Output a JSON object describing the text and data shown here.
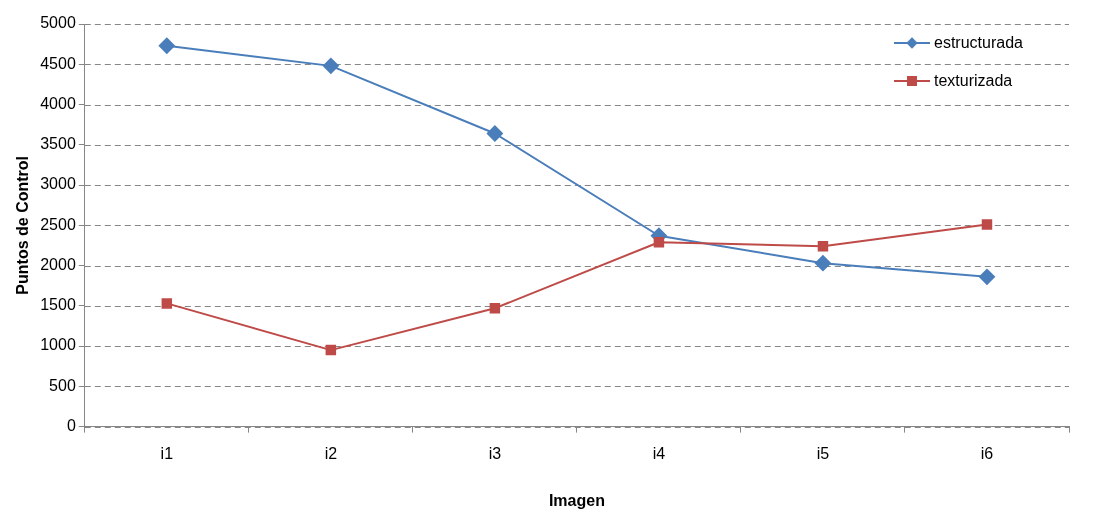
{
  "chart_data": {
    "type": "line",
    "xlabel": "Imagen",
    "ylabel": "Puntos de Control",
    "categories": [
      "i1",
      "i2",
      "i3",
      "i4",
      "i5",
      "i6"
    ],
    "series": [
      {
        "name": "estructurada",
        "color": "#4a7ebb",
        "marker": "diamond",
        "values": [
          4730,
          4480,
          3640,
          2370,
          2030,
          1860
        ]
      },
      {
        "name": "texturizada",
        "color": "#be4b48",
        "marker": "square",
        "values": [
          1530,
          950,
          1470,
          2290,
          2240,
          2510
        ]
      }
    ],
    "ylim": [
      0,
      5000
    ],
    "yticks": [
      0,
      500,
      1000,
      1500,
      2000,
      2500,
      3000,
      3500,
      4000,
      4500,
      5000
    ],
    "grid": "y",
    "legend": "top right",
    "line_style": "solid"
  }
}
